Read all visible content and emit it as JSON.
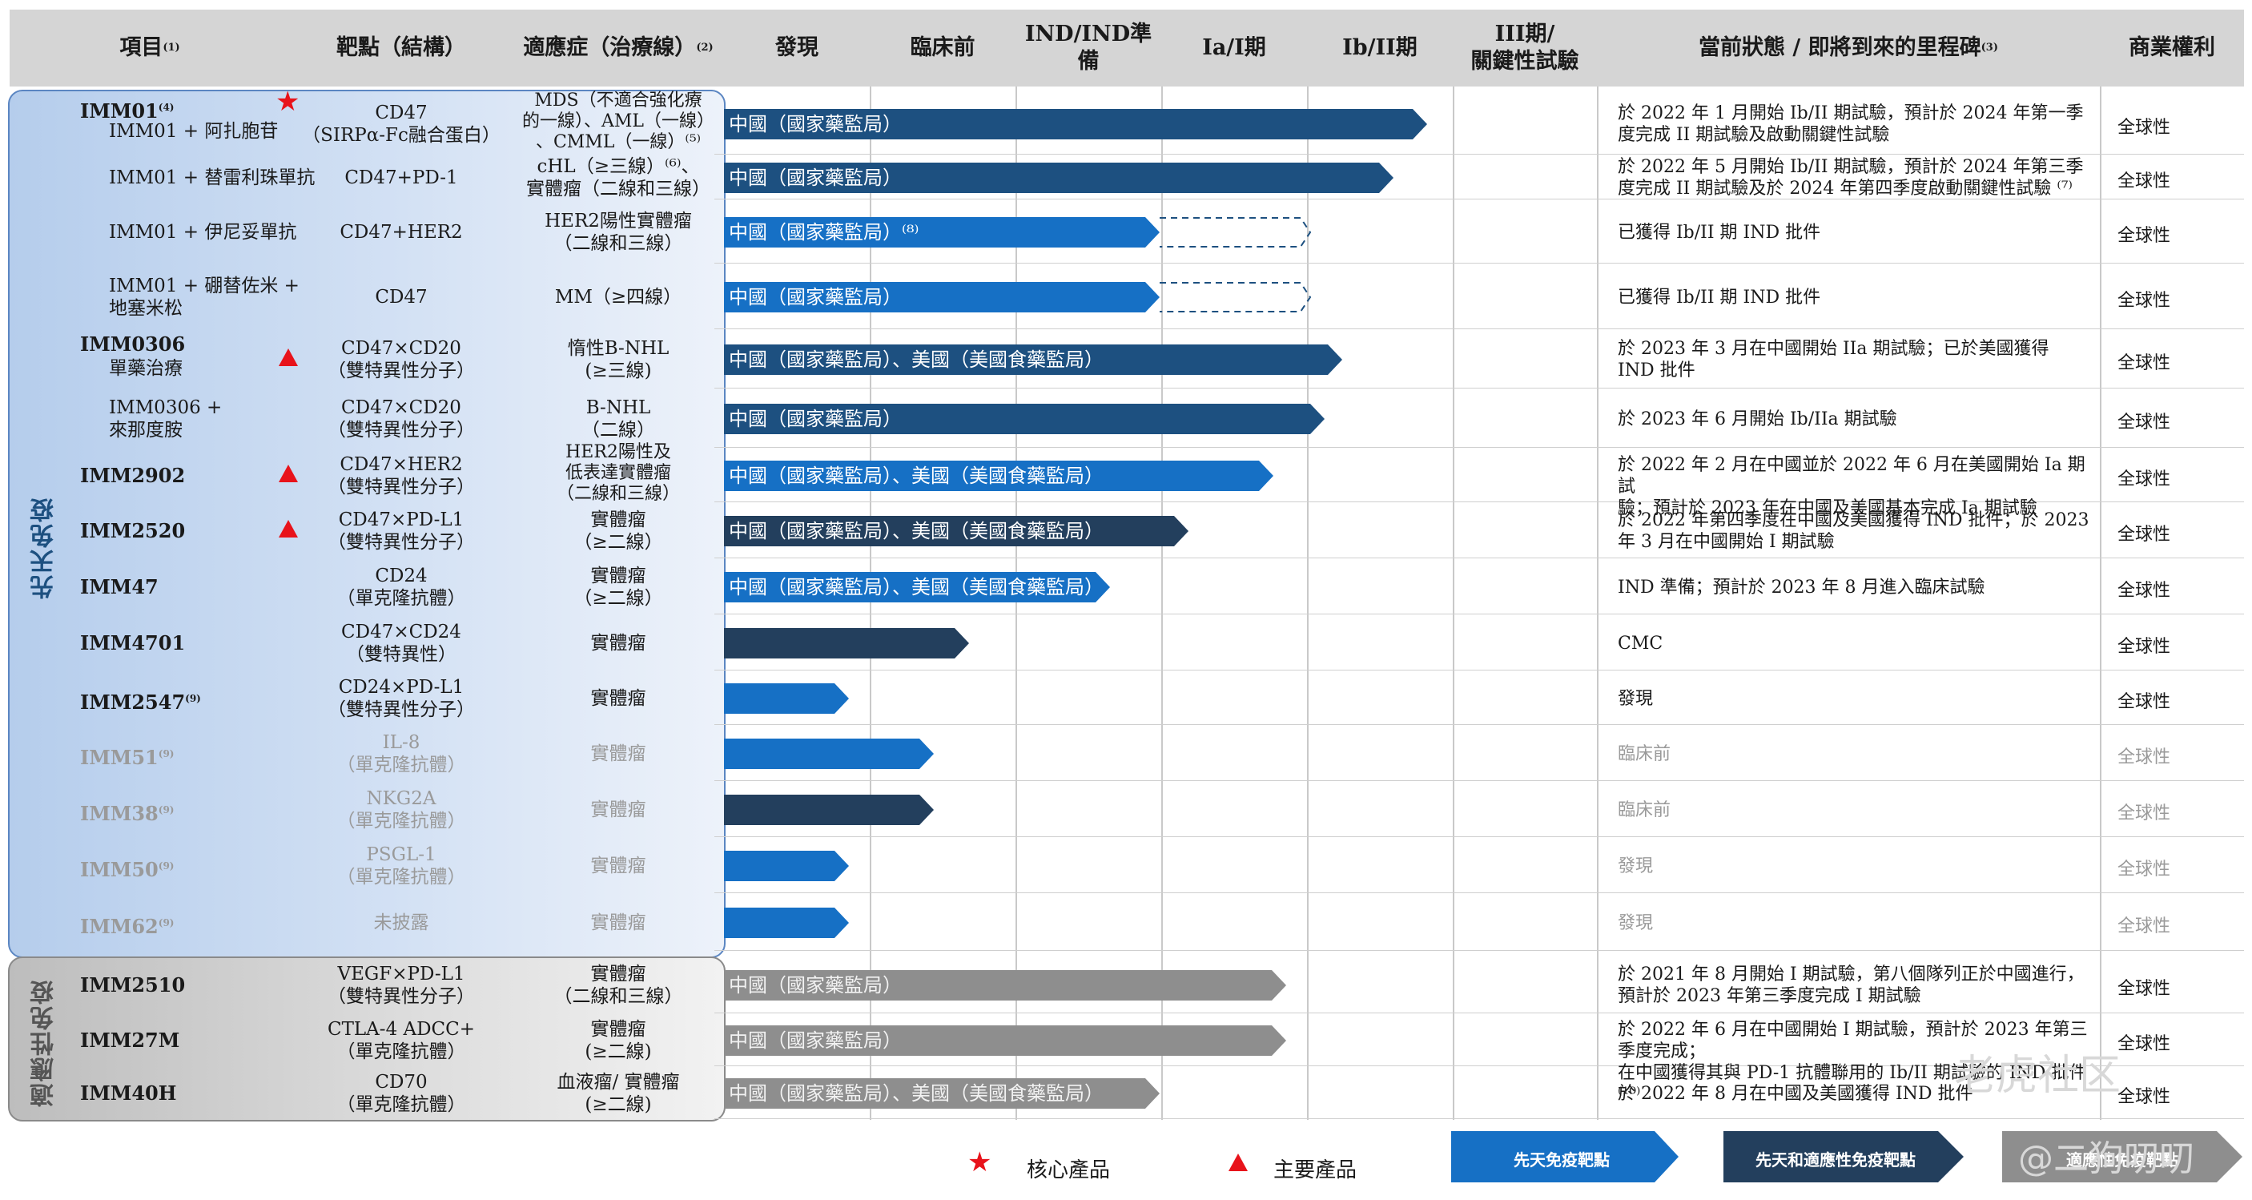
{
  "colors": {
    "header_bg": "#d5d5d5",
    "innate_blue_light": "#1670c5",
    "innate_blue_dark": "#1d5080",
    "combined_dark": "#233f5d",
    "adaptive_gray": "#8e8e8e",
    "core_red": "#e8131b"
  },
  "header": {
    "project": "項目",
    "project_note": "(1)",
    "target": "靶點（結構）",
    "indication": "適應症（治療線）",
    "indication_note": "(2)",
    "discovery": "發現",
    "preclinical": "臨床前",
    "ind": "IND/IND準備",
    "phase1": "Ia/I期",
    "phase2": "Ib/II期",
    "phase3_l1": "III期/",
    "phase3_l2": "關鍵性試驗",
    "status": "當前狀態 / 即將到來的里程碑",
    "status_note": "(3)",
    "rights": "商業權利"
  },
  "groups": {
    "innate": "先天免疫",
    "adaptive": "適應性免疫"
  },
  "rows": [
    {
      "name": "IMM01",
      "name_note": "(4)",
      "sub": "IMM01 + 阿扎胞苷",
      "target": [
        "CD47",
        "（SIRPα-Fc融合蛋白）"
      ],
      "indication": [
        "MDS（不適合強化療",
        "的一線）、AML（一線）",
        "、CMML（一線）⁽⁵⁾"
      ],
      "bar": "中國（國家藥監局）",
      "status": [
        "於 2022 年 1 月開始 Ib/II 期試驗，預計於 2024 年第一季",
        "度完成 II 期試驗及啟動關鍵性試驗"
      ],
      "rights": "全球性"
    },
    {
      "name": "",
      "sub": "IMM01 + 替雷利珠單抗",
      "target": [
        "CD47+PD-1"
      ],
      "indication": [
        "cHL（≥三線）⁽⁶⁾、",
        "實體瘤（二線和三線）"
      ],
      "bar": "中國（國家藥監局）",
      "status": [
        "於 2022 年 5 月開始 Ib/II 期試驗，預計於 2024 年第三季",
        "度完成 II 期試驗及於 2024 年第四季度啟動關鍵性試驗 ⁽⁷⁾"
      ],
      "rights": "全球性"
    },
    {
      "name": "",
      "sub": "IMM01 + 伊尼妥單抗",
      "target": [
        "CD47+HER2"
      ],
      "indication": [
        "HER2陽性實體瘤",
        "（二線和三線）"
      ],
      "bar": "中國（國家藥監局）⁽⁸⁾",
      "status": [
        "已獲得 Ib/II 期 IND 批件"
      ],
      "rights": "全球性"
    },
    {
      "name": "",
      "sub": "IMM01 + 硼替佐米 +",
      "sub2": "地塞米松",
      "target": [
        "CD47"
      ],
      "indication": [
        "MM（≥四線）"
      ],
      "bar": "中國（國家藥監局）",
      "status": [
        "已獲得 Ib/II 期 IND 批件"
      ],
      "rights": "全球性"
    },
    {
      "name": "IMM0306",
      "sub": "單藥治療",
      "target": [
        "CD47×CD20",
        "（雙特異性分子）"
      ],
      "indication": [
        "惰性B-NHL",
        "(≥三線)"
      ],
      "bar": "中國（國家藥監局）、美國（美國食藥監局）",
      "status": [
        "於 2023 年 3 月在中國開始 IIa 期試驗；已於美國獲得",
        "IND 批件"
      ],
      "rights": "全球性"
    },
    {
      "name": "",
      "sub": "IMM0306 +",
      "sub2": "來那度胺",
      "target": [
        "CD47×CD20",
        "（雙特異性分子）"
      ],
      "indication": [
        "B-NHL",
        "（二線）"
      ],
      "bar": "中國（國家藥監局）",
      "status": [
        "於 2023 年 6 月開始 Ib/IIa 期試驗"
      ],
      "rights": "全球性"
    },
    {
      "name": "IMM2902",
      "target": [
        "CD47×HER2",
        "（雙特異性分子）"
      ],
      "indication": [
        "HER2陽性及",
        "低表達實體瘤",
        "（二線和三線）"
      ],
      "bar": "中國（國家藥監局）、美國（美國食藥監局）",
      "status": [
        "於 2022 年 2 月在中國並於 2022 年 6 月在美國開始 Ia 期試",
        "驗；預計於 2023 年在中國及美國基本完成 Ia 期試驗"
      ],
      "rights": "全球性"
    },
    {
      "name": "IMM2520",
      "target": [
        "CD47×PD-L1",
        "（雙特異性分子）"
      ],
      "indication": [
        "實體瘤",
        "（≥二線）"
      ],
      "bar": "中國（國家藥監局）、美國（美國食藥監局）",
      "status": [
        "於 2022 年第四季度在中國及美國獲得 IND 批件；於 2023",
        "年 3 月在中國開始 I 期試驗"
      ],
      "rights": "全球性"
    },
    {
      "name": "IMM47",
      "target": [
        "CD24",
        "（單克隆抗體）"
      ],
      "indication": [
        "實體瘤",
        "（≥二線）"
      ],
      "bar": "中國（國家藥監局）、美國（美國食藥監局）",
      "status": [
        "IND 準備；預計於 2023 年 8 月進入臨床試驗"
      ],
      "rights": "全球性"
    },
    {
      "name": "IMM4701",
      "target": [
        "CD47×CD24",
        "（雙特異性）"
      ],
      "indication": [
        "實體瘤"
      ],
      "bar": "",
      "status": [
        "CMC"
      ],
      "rights": "全球性"
    },
    {
      "name": "IMM2547",
      "name_note": "(9)",
      "target": [
        "CD24×PD-L1",
        "（雙特異性分子）"
      ],
      "indication": [
        "實體瘤"
      ],
      "bar": "",
      "status": [
        "發現"
      ],
      "rights": "全球性"
    },
    {
      "name": "IMM51",
      "name_note": "(9)",
      "target": [
        "IL-8",
        "（單克隆抗體）"
      ],
      "indication": [
        "實體瘤"
      ],
      "bar": "",
      "status": [
        "臨床前"
      ],
      "rights": "全球性"
    },
    {
      "name": "IMM38",
      "name_note": "(9)",
      "target": [
        "NKG2A",
        "（單克隆抗體）"
      ],
      "indication": [
        "實體瘤"
      ],
      "bar": "",
      "status": [
        "臨床前"
      ],
      "rights": "全球性"
    },
    {
      "name": "IMM50",
      "name_note": "(9)",
      "target": [
        "PSGL-1",
        "（單克隆抗體）"
      ],
      "indication": [
        "實體瘤"
      ],
      "bar": "",
      "status": [
        "發現"
      ],
      "rights": "全球性"
    },
    {
      "name": "IMM62",
      "name_note": "(9)",
      "target": [
        "未披露"
      ],
      "indication": [
        "實體瘤"
      ],
      "bar": "",
      "status": [
        "發現"
      ],
      "rights": "全球性"
    },
    {
      "name": "IMM2510",
      "target": [
        "VEGF×PD-L1",
        "（雙特異性分子）"
      ],
      "indication": [
        "實體瘤",
        "（二線和三線）"
      ],
      "bar": "中國（國家藥監局）",
      "status": [
        "於 2021 年 8 月開始 I 期試驗，第八個隊列正於中國進行，",
        "預計於 2023 年第三季度完成 I 期試驗"
      ],
      "rights": "全球性"
    },
    {
      "name": "IMM27M",
      "target": [
        "CTLA-4 ADCC+",
        "（單克隆抗體）"
      ],
      "indication": [
        "實體瘤",
        "(≥二線)"
      ],
      "bar": "中國（國家藥監局）",
      "status": [
        "於 2022 年 6 月在中國開始 I 期試驗，預計於 2023 年第三季度完成；",
        "在中國獲得其與 PD-1 抗體聯用的 Ib/II 期試驗的 IND 批件 ⁽¹⁰⁾"
      ],
      "rights": "全球性"
    },
    {
      "name": "IMM40H",
      "target": [
        "CD70",
        "（單克隆抗體）"
      ],
      "indication": [
        "血液瘤/ 實體瘤",
        "(≥二線)"
      ],
      "bar": "中國（國家藥監局）、美國（美國食藥監局）",
      "status": [
        "於 2022 年 8 月在中國及美國獲得 IND 批件"
      ],
      "rights": "全球性"
    }
  ],
  "legend": {
    "core": "核心產品",
    "key": "主要產品",
    "innate_target": "先天免疫靶點",
    "innate_adaptive_target": "先天和適應性免疫靶點",
    "adaptive_target": "適應性免疫靶點"
  },
  "watermark": {
    "line1": "老虎社区",
    "line2": "@二狗叨叨"
  }
}
